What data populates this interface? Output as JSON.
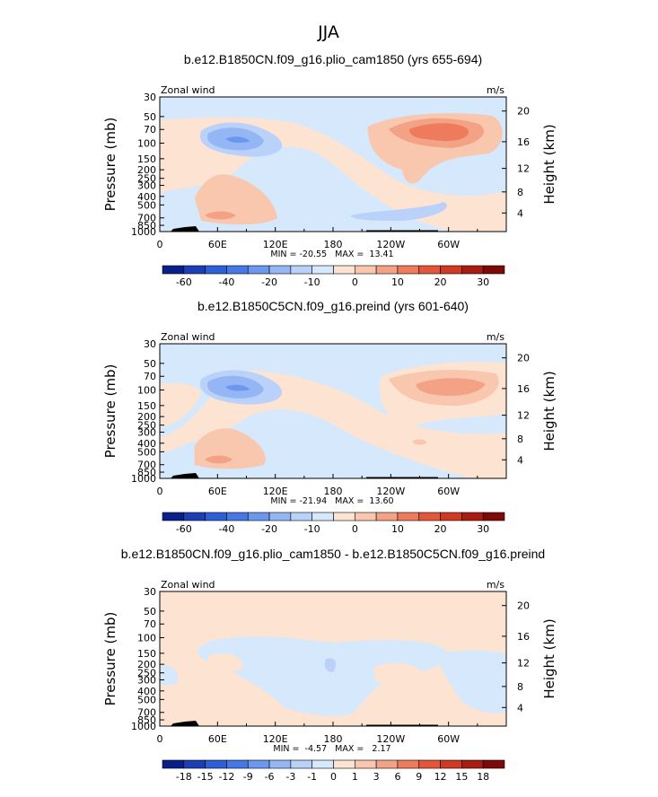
{
  "figure_title": "JJA",
  "chart_data": [
    {
      "type": "heatmap",
      "title": "b.e12.B1850CN.f09_g16.plio_cam1850 (yrs 655-694)",
      "variable": "Zonal wind",
      "units": "m/s",
      "ylabel_left": "Pressure (mb)",
      "ylabel_right": "Height (km)",
      "x_ticks": [
        "0",
        "60E",
        "120E",
        "180",
        "120W",
        "60W"
      ],
      "x_tick_values": [
        0,
        60,
        120,
        180,
        240,
        300
      ],
      "xlim": [
        0,
        360
      ],
      "pressure_ticks": [
        "30",
        "50",
        "70",
        "100",
        "150",
        "200",
        "250",
        "300",
        "400",
        "500",
        "700",
        "850",
        "1000"
      ],
      "pressure_values": [
        30,
        50,
        70,
        100,
        150,
        200,
        250,
        300,
        400,
        500,
        700,
        850,
        1000
      ],
      "height_ticks": [
        "4",
        "8",
        "12",
        "16",
        "20"
      ],
      "height_values_km": [
        4,
        8,
        12,
        16,
        20
      ],
      "stats_text": "MIN = -20.55   MAX =  13.41",
      "min": -20.55,
      "max": 13.41,
      "colorbar_labels": [
        "-60",
        "-40",
        "-20",
        "-10",
        "0",
        "10",
        "20",
        "30"
      ],
      "colorbar_levels": [
        -70,
        -60,
        -50,
        -40,
        -30,
        -20,
        -15,
        -10,
        -5,
        0,
        5,
        10,
        15,
        20,
        25,
        30
      ]
    },
    {
      "type": "heatmap",
      "title": "b.e12.B1850C5CN.f09_g16.preind (yrs 601-640)",
      "variable": "Zonal wind",
      "units": "m/s",
      "ylabel_left": "Pressure (mb)",
      "ylabel_right": "Height (km)",
      "x_ticks": [
        "0",
        "60E",
        "120E",
        "180",
        "120W",
        "60W"
      ],
      "x_tick_values": [
        0,
        60,
        120,
        180,
        240,
        300
      ],
      "xlim": [
        0,
        360
      ],
      "pressure_ticks": [
        "30",
        "50",
        "70",
        "100",
        "150",
        "200",
        "250",
        "300",
        "400",
        "500",
        "700",
        "850",
        "1000"
      ],
      "pressure_values": [
        30,
        50,
        70,
        100,
        150,
        200,
        250,
        300,
        400,
        500,
        700,
        850,
        1000
      ],
      "height_ticks": [
        "4",
        "8",
        "12",
        "16",
        "20"
      ],
      "height_values_km": [
        4,
        8,
        12,
        16,
        20
      ],
      "stats_text": "MIN = -21.94   MAX =  13.60",
      "min": -21.94,
      "max": 13.6,
      "colorbar_labels": [
        "-60",
        "-40",
        "-20",
        "-10",
        "0",
        "10",
        "20",
        "30"
      ],
      "colorbar_levels": [
        -70,
        -60,
        -50,
        -40,
        -30,
        -20,
        -15,
        -10,
        -5,
        0,
        5,
        10,
        15,
        20,
        25,
        30
      ]
    },
    {
      "type": "heatmap",
      "title": "b.e12.B1850CN.f09_g16.plio_cam1850 - b.e12.B1850C5CN.f09_g16.preind",
      "variable": "Zonal wind",
      "units": "m/s",
      "ylabel_left": "Pressure (mb)",
      "ylabel_right": "Height (km)",
      "x_ticks": [
        "0",
        "60E",
        "120E",
        "180",
        "120W",
        "60W"
      ],
      "x_tick_values": [
        0,
        60,
        120,
        180,
        240,
        300
      ],
      "xlim": [
        0,
        360
      ],
      "pressure_ticks": [
        "30",
        "50",
        "70",
        "100",
        "150",
        "200",
        "250",
        "300",
        "400",
        "500",
        "700",
        "850",
        "1000"
      ],
      "pressure_values": [
        30,
        50,
        70,
        100,
        150,
        200,
        250,
        300,
        400,
        500,
        700,
        850,
        1000
      ],
      "height_ticks": [
        "4",
        "8",
        "12",
        "16",
        "20"
      ],
      "height_values_km": [
        4,
        8,
        12,
        16,
        20
      ],
      "stats_text": "MIN =  -4.57   MAX =   2.17",
      "min": -4.57,
      "max": 2.17,
      "colorbar_labels": [
        "-18",
        "-15",
        "-12",
        "-9",
        "-6",
        "-3",
        "-1",
        "0",
        "1",
        "3",
        "6",
        "9",
        "12",
        "15",
        "18"
      ],
      "colorbar_levels": [
        -21,
        -18,
        -15,
        -12,
        -9,
        -6,
        -3,
        -1,
        0,
        1,
        3,
        6,
        9,
        12,
        15,
        18
      ]
    }
  ],
  "colors": {
    "background_blue": "#d6e8fb",
    "background_peach": "#fde4d2",
    "palette": [
      "#0b1f8c",
      "#1d3fb5",
      "#2f5fd6",
      "#4679e6",
      "#6c97ef",
      "#94b6f5",
      "#bad2f9",
      "#d6e8fb",
      "#fde4d2",
      "#f9c7ae",
      "#f4a285",
      "#ee7b5c",
      "#e4563a",
      "#cf3a22",
      "#a91c12",
      "#7d0a06"
    ],
    "diff_palette": [
      "#0b1f8c",
      "#1d3fb5",
      "#2f5fd6",
      "#4679e6",
      "#6c97ef",
      "#94b6f5",
      "#bad2f9",
      "#d6e8fb",
      "#fde4d2",
      "#f9c7ae",
      "#f4a285",
      "#ee7b5c",
      "#e4563a",
      "#cf3a22",
      "#a91c12",
      "#7d0a06"
    ]
  }
}
